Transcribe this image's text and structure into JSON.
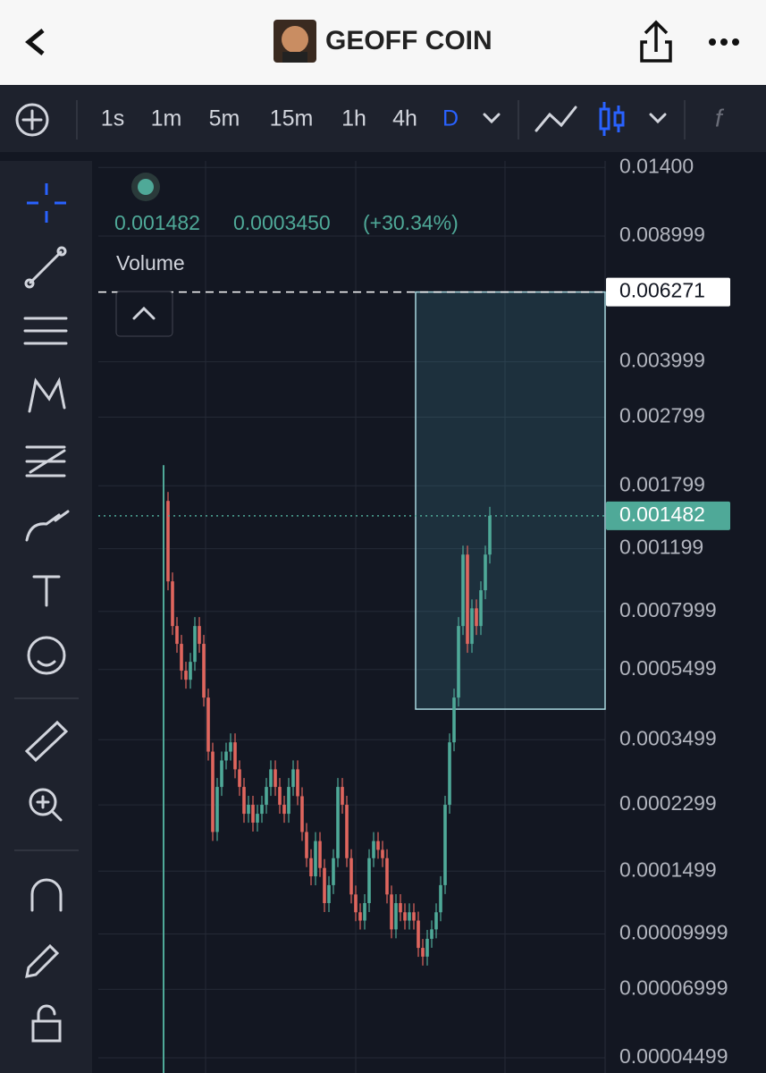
{
  "header": {
    "title": "GEOFF COIN"
  },
  "toolbar": {
    "intervals": [
      "1s",
      "1m",
      "5m",
      "15m",
      "1h",
      "4h",
      "D"
    ]
  },
  "legend": {
    "price": "0.001482",
    "change": "0.0003450",
    "change_pct": "(+30.34%)",
    "indicator": "Volume"
  },
  "chart_data": {
    "type": "candlestick",
    "values": [
      0.001631,
      0.000971,
      0.000728,
      0.000649,
      0.000546,
      0.000515,
      0.000578,
      0.000728,
      0.000649,
      0.000459,
      0.000324,
      0.000193,
      0.000258,
      0.000306,
      0.000324,
      0.000344,
      0.000289,
      0.000258,
      0.000217,
      0.00023,
      0.000205,
      0.000217,
      0.00023,
      0.000258,
      0.000289,
      0.000258,
      0.00023,
      0.000217,
      0.000258,
      0.000289,
      0.000243,
      0.000193,
      0.000163,
      0.000145,
      0.000182,
      0.000153,
      0.000122,
      0.000137,
      0.000163,
      0.000258,
      0.00023,
      0.000163,
      0.000129,
      0.000115,
      0.000109,
      0.000122,
      0.000163,
      0.000182,
      0.000172,
      0.000163,
      0.000129,
      0.000103,
      0.000122,
      0.000115,
      0.000109,
      0.000115,
      0.000109,
      9.14e-05,
      8.64e-05,
      9.69e-05,
      0.000103,
      0.000115,
      0.000137,
      0.00023,
      0.000344,
      0.000459,
      0.000728,
      0.001154,
      0.000649,
      0.000816,
      0.000728,
      0.000917,
      0.001154,
      0.001482
    ],
    "ylim": [
      4.08e-05,
      0.0146
    ],
    "yticks": [
      {
        "value": 0.014,
        "label": "0.01400"
      },
      0.008999,
      0.003999,
      0.002799,
      0.001799,
      0.001199,
      0.0007999,
      0.0005499,
      0.0003499,
      0.0002299,
      0.0001499,
      9.999e-05,
      6.999e-05,
      4.499e-05
    ],
    "log_scale": true,
    "grid": true,
    "up_color": "#4fa998",
    "down_color": "#e0665e",
    "range_box": {
      "top": 0.006271,
      "bottom": 0.000426
    },
    "last_price": 0.001482
  }
}
